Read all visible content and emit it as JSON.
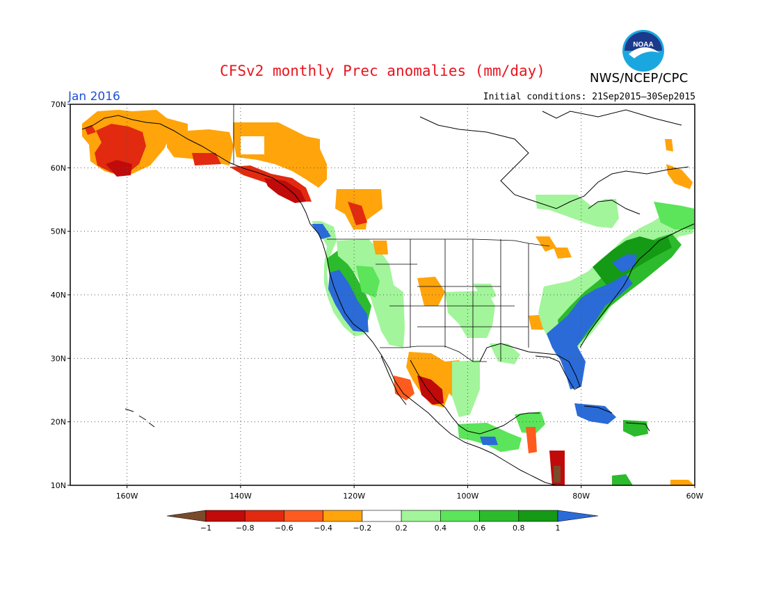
{
  "header": {
    "title": "CFSv2 monthly Prec anomalies (mm/day)",
    "agency": "NWS/NCEP/CPC",
    "period": "Jan 2016",
    "initial_conditions": "Initial conditions: 21Sep2015–30Sep2015"
  },
  "logo": {
    "text": "NOAA",
    "icon": "noaa-logo"
  },
  "map": {
    "lat_labels": [
      "70N",
      "60N",
      "50N",
      "40N",
      "30N",
      "20N",
      "10N"
    ],
    "lon_labels": [
      "160W",
      "140W",
      "120W",
      "100W",
      "80W",
      "60W"
    ],
    "lat_range": [
      10,
      70
    ],
    "lon_range": [
      -170,
      -60
    ],
    "grid": true
  },
  "colorbar": {
    "labels": [
      "−1",
      "−0.8",
      "−0.6",
      "−0.4",
      "−0.2",
      "0.2",
      "0.4",
      "0.6",
      "0.8",
      "1"
    ],
    "colors": [
      "#7a4a2a",
      "#c10a0a",
      "#e12a10",
      "#ff5b1e",
      "#ffa40b",
      "#ffffff",
      "#a2f59a",
      "#5ce45a",
      "#2cbb2c",
      "#149a14",
      "#2a6bd8"
    ]
  },
  "colors": {
    "dry_strong": "#c10a0a",
    "dry_mid": "#e12a10",
    "dry_light": "#ffa40b",
    "wet_light": "#a2f59a",
    "wet_mid": "#5ce45a",
    "wet_dark": "#149a14",
    "wet_max": "#2a6bd8"
  }
}
